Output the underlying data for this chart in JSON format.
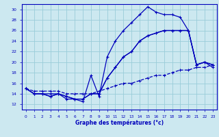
{
  "title": "Graphe des températures (°c)",
  "bg_color": "#cce8f0",
  "grid_color": "#99ccd9",
  "line_color": "#0000bb",
  "xlim": [
    -0.5,
    23.5
  ],
  "ylim": [
    11,
    31
  ],
  "yticks": [
    12,
    14,
    16,
    18,
    20,
    22,
    24,
    26,
    28,
    30
  ],
  "xticks": [
    0,
    1,
    2,
    3,
    4,
    5,
    6,
    7,
    8,
    9,
    10,
    11,
    12,
    13,
    14,
    15,
    16,
    17,
    18,
    19,
    20,
    21,
    22,
    23
  ],
  "line1_x": [
    0,
    1,
    2,
    3,
    4,
    5,
    6,
    7,
    8,
    9,
    10,
    11,
    12,
    13,
    14,
    15,
    16,
    17,
    18,
    19,
    20,
    21,
    22,
    23
  ],
  "line1_y": [
    15,
    14,
    14,
    14,
    14,
    13,
    13,
    12.5,
    17.5,
    13.5,
    21,
    24,
    26,
    27.5,
    29,
    30.5,
    29.5,
    29,
    29,
    28.5,
    26,
    19.5,
    20,
    19
  ],
  "line2_x": [
    0,
    1,
    2,
    3,
    4,
    5,
    6,
    7,
    8,
    9,
    10,
    11,
    12,
    13,
    14,
    15,
    16,
    17,
    18,
    19,
    20,
    21,
    22,
    23
  ],
  "line2_y": [
    15,
    14,
    14,
    13.5,
    14,
    13.5,
    13,
    13,
    14,
    14,
    17,
    19,
    21,
    22,
    24,
    25,
    25.5,
    26,
    26,
    26,
    26,
    19.5,
    20,
    19.5
  ],
  "line3_x": [
    0,
    1,
    2,
    3,
    4,
    5,
    6,
    7,
    8,
    9,
    10,
    11,
    12,
    13,
    14,
    15,
    16,
    17,
    18,
    19,
    20,
    21,
    22,
    23
  ],
  "line3_y": [
    15,
    14,
    14,
    13.5,
    14,
    13.5,
    13,
    13,
    14,
    14,
    17,
    19,
    21,
    22,
    24,
    25,
    25.5,
    26,
    26,
    26,
    26,
    19.5,
    20,
    19.5
  ],
  "line4_x": [
    0,
    1,
    2,
    3,
    4,
    5,
    6,
    7,
    8,
    9,
    10,
    11,
    12,
    13,
    14,
    15,
    16,
    17,
    18,
    19,
    20,
    21,
    22,
    23
  ],
  "line4_y": [
    15,
    14.5,
    14.5,
    14.5,
    14.5,
    14,
    14,
    14,
    14,
    14.5,
    15,
    15.5,
    16,
    16,
    16.5,
    17,
    17.5,
    17.5,
    18,
    18.5,
    18.5,
    19,
    19,
    19.5
  ]
}
